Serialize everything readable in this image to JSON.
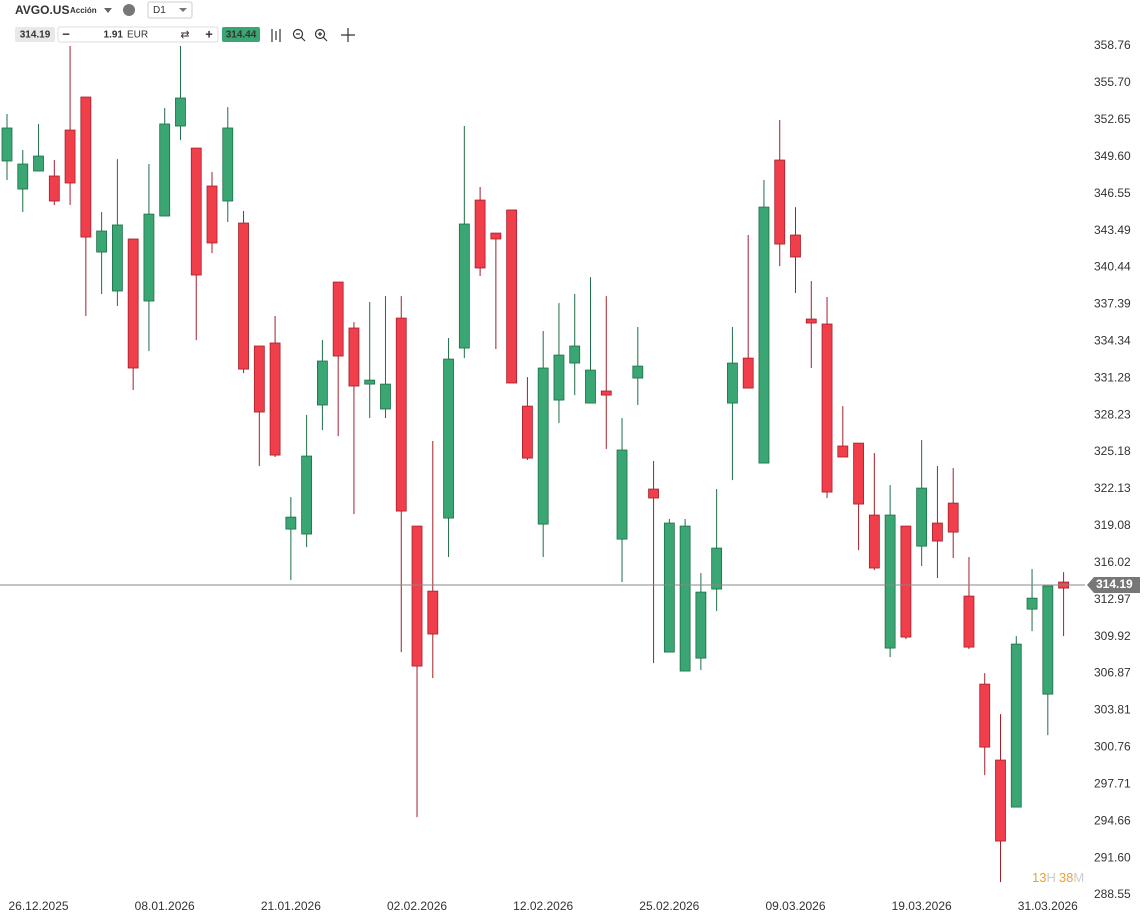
{
  "header": {
    "symbol": "AVGO.US",
    "kind": "Acción",
    "timeframe": "D1",
    "bid": "314.19",
    "volume": "1.91",
    "currency": "EUR",
    "ask": "314.44"
  },
  "timer": [
    "13",
    "H",
    "38",
    "M"
  ],
  "chart_data": {
    "type": "candlestick",
    "categories": [
      null,
      null,
      "26.12.2025",
      null,
      null,
      null,
      null,
      null,
      null,
      null,
      "08.01.2026",
      null,
      null,
      null,
      null,
      null,
      null,
      null,
      "21.01.2026",
      null,
      null,
      null,
      null,
      null,
      null,
      null,
      "02.02.2026",
      null,
      null,
      null,
      null,
      null,
      null,
      null,
      "12.02.2026",
      null,
      null,
      null,
      null,
      null,
      null,
      null,
      "25.02.2026",
      null,
      null,
      null,
      null,
      null,
      null,
      null,
      "09.03.2026",
      null,
      null,
      null,
      null,
      null,
      null,
      null,
      "19.03.2026",
      null,
      null,
      null,
      null,
      null,
      null,
      null,
      "31.03.2026",
      null
    ],
    "open": [
      349.25,
      346.93,
      348.42,
      348.01,
      351.81,
      354.54,
      341.72,
      338.5,
      342.8,
      337.67,
      344.7,
      352.14,
      350.32,
      347.18,
      345.94,
      344.12,
      333.95,
      334.2,
      318.81,
      318.4,
      329.07,
      339.24,
      335.44,
      330.8,
      328.74,
      336.26,
      319.06,
      313.68,
      319.72,
      333.78,
      346.02,
      343.29,
      345.2,
      328.98,
      319.22,
      329.48,
      332.54,
      329.23,
      330.23,
      317.98,
      331.3,
      322.12,
      308.64,
      307.07,
      308.14,
      313.85,
      329.23,
      332.95,
      324.27,
      349.33,
      343.13,
      336.18,
      335.77,
      325.68,
      325.92,
      319.97,
      308.97,
      319.06,
      317.4,
      319.31,
      320.96,
      313.27,
      305.99,
      299.71,
      295.82,
      312.19,
      305.16,
      314.43
    ],
    "high": [
      353.14,
      350.16,
      352.31,
      349.33,
      358.76,
      354.54,
      345.03,
      349.41,
      342.8,
      349.0,
      353.63,
      358.76,
      350.32,
      348.34,
      353.71,
      345.11,
      333.95,
      336.43,
      321.46,
      328.24,
      334.44,
      339.24,
      335.93,
      337.59,
      338.08,
      338.08,
      319.06,
      326.09,
      334.61,
      352.14,
      347.1,
      343.29,
      345.2,
      331.38,
      335.19,
      337.5,
      338.25,
      339.65,
      338.08,
      327.99,
      335.52,
      324.44,
      319.64,
      319.64,
      315.17,
      322.12,
      335.52,
      343.13,
      347.68,
      352.64,
      345.44,
      339.32,
      338.0,
      328.98,
      325.92,
      325.1,
      322.45,
      319.06,
      326.17,
      324.02,
      323.86,
      316.5,
      306.9,
      303.51,
      309.96,
      315.5,
      314.1,
      315.25
    ],
    "low": [
      347.68,
      345.03,
      348.42,
      345.61,
      345.61,
      336.43,
      338.25,
      337.26,
      330.31,
      333.53,
      344.7,
      350.99,
      334.44,
      341.64,
      344.2,
      331.71,
      324.02,
      324.77,
      314.59,
      317.32,
      327.0,
      326.5,
      320.05,
      327.99,
      327.99,
      308.64,
      294.99,
      306.49,
      316.5,
      332.95,
      339.74,
      333.7,
      330.89,
      324.52,
      316.5,
      327.58,
      329.89,
      329.23,
      325.43,
      314.43,
      329.07,
      307.73,
      308.64,
      307.07,
      307.15,
      312.03,
      322.86,
      330.47,
      324.27,
      340.56,
      338.33,
      332.13,
      321.38,
      324.77,
      317.07,
      315.42,
      308.22,
      309.71,
      315.75,
      314.76,
      316.41,
      308.89,
      298.46,
      289.61,
      295.82,
      310.37,
      301.77,
      309.96
    ],
    "close": [
      351.98,
      349.0,
      349.66,
      345.94,
      347.43,
      342.96,
      343.46,
      343.96,
      332.13,
      344.86,
      352.31,
      354.46,
      339.82,
      342.47,
      351.98,
      332.04,
      328.49,
      324.93,
      319.8,
      324.85,
      332.71,
      333.12,
      330.64,
      331.13,
      330.8,
      320.3,
      307.48,
      310.13,
      332.87,
      344.04,
      340.4,
      342.8,
      330.89,
      324.68,
      332.13,
      333.2,
      333.95,
      331.96,
      329.89,
      325.35,
      332.29,
      321.38,
      319.31,
      319.06,
      313.6,
      317.24,
      332.54,
      330.47,
      345.44,
      342.38,
      341.31,
      335.85,
      321.87,
      324.77,
      320.88,
      315.59,
      319.97,
      309.88,
      322.2,
      317.82,
      318.56,
      309.05,
      300.78,
      293.01,
      309.3,
      313.1,
      314.1,
      313.93
    ],
    "up_color": "#3aa673",
    "down_color": "#f03e4b",
    "last_price": 314.19,
    "ylim": [
      288.55,
      358.76
    ],
    "yticks": [
      358.76,
      {
        "value": 355.7,
        "label": "355.70"
      },
      352.65,
      {
        "value": 349.6,
        "label": "349.60"
      },
      346.55,
      343.49,
      340.44,
      337.39,
      334.34,
      331.28,
      328.23,
      325.18,
      322.13,
      319.08,
      316.02,
      312.97,
      309.92,
      306.87,
      303.81,
      300.76,
      297.71,
      294.66,
      {
        "value": 291.6,
        "label": "291.60"
      },
      288.55
    ]
  }
}
